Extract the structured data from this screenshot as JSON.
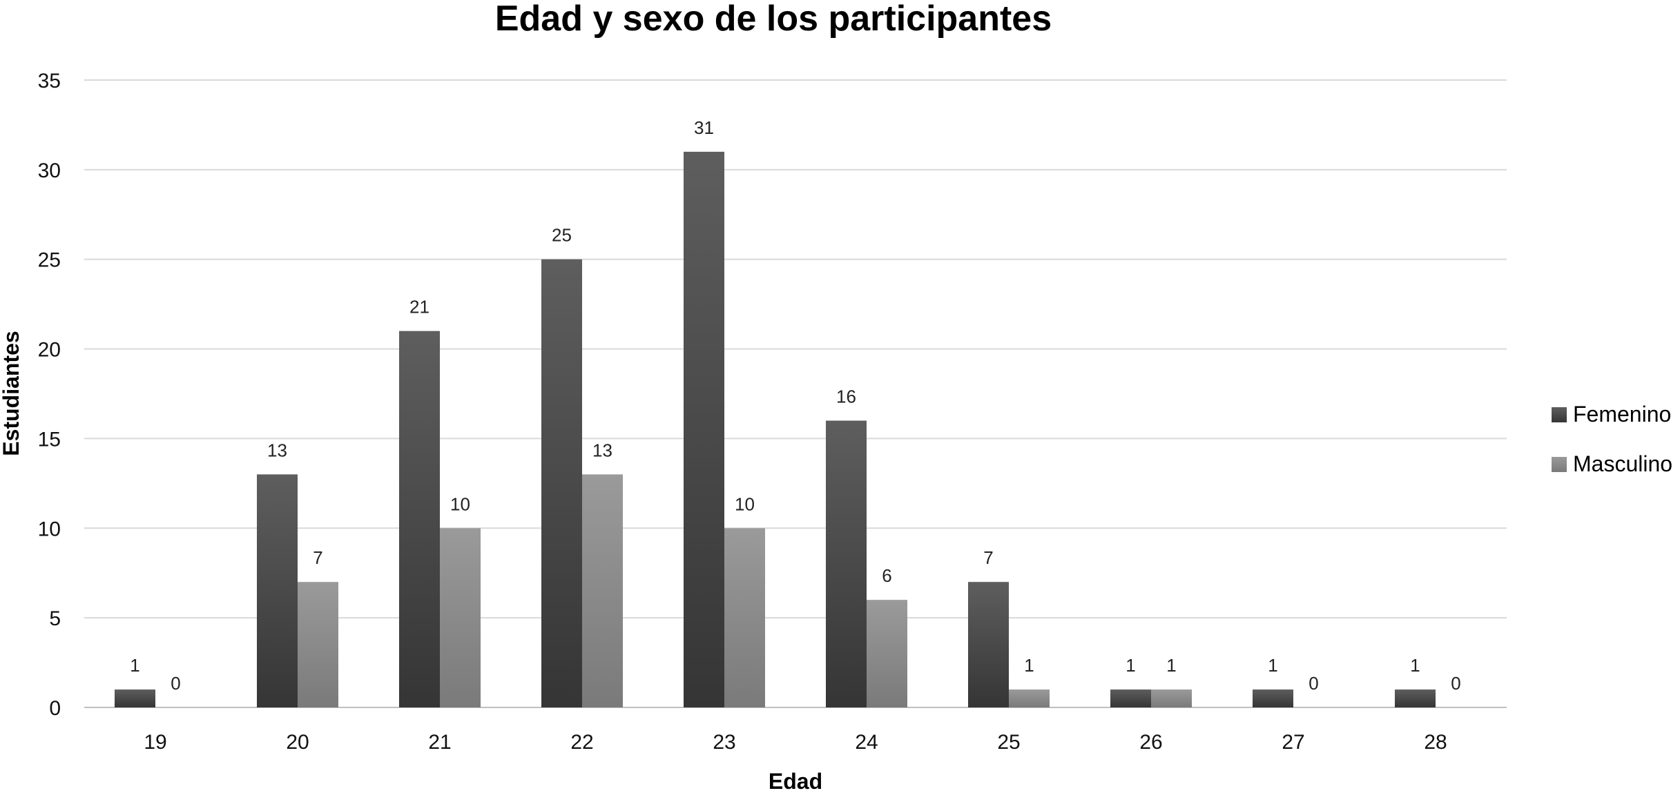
{
  "chart_data": {
    "type": "bar",
    "title": "Edad y sexo de los participantes",
    "xlabel": "Edad",
    "ylabel": "Estudiantes",
    "categories": [
      "19",
      "20",
      "21",
      "22",
      "23",
      "24",
      "25",
      "26",
      "27",
      "28"
    ],
    "series": [
      {
        "name": "Femenino",
        "values": [
          1,
          13,
          21,
          25,
          31,
          16,
          7,
          1,
          1,
          1
        ],
        "color": "#4a4a4a"
      },
      {
        "name": "Masculino",
        "values": [
          0,
          7,
          10,
          13,
          10,
          6,
          1,
          1,
          0,
          0
        ],
        "color": "#8c8c8c"
      }
    ],
    "ylim": [
      0,
      35
    ],
    "yticks": [
      0,
      5,
      10,
      15,
      20,
      25,
      30,
      35
    ],
    "grid": true,
    "legend": "right"
  }
}
